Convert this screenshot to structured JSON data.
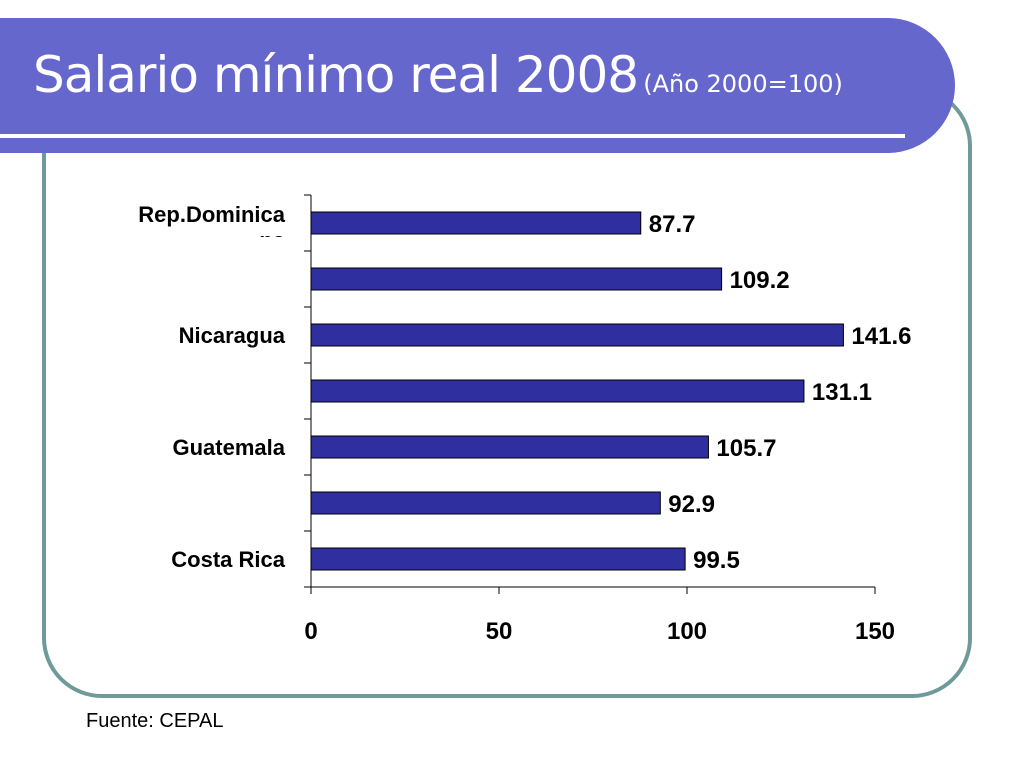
{
  "slide": {
    "title_main": "Salario mínimo real 2008",
    "title_sub": "(Año 2000=100)",
    "source": "Fuente: CEPAL"
  },
  "colors": {
    "band": "#6667cc",
    "frame": "#6f9a9a",
    "bar": "#2f2fa0",
    "bar_stroke": "#000000"
  },
  "chart_data": {
    "type": "bar",
    "orientation": "horizontal",
    "categories": [
      "Rep.Dominicana",
      "",
      "Nicaragua",
      "",
      "Guatemala",
      "",
      "Costa Rica"
    ],
    "category_label_lines": [
      [
        "Rep.Dominica",
        "na"
      ],
      [],
      [
        "Nicaragua"
      ],
      [],
      [
        "Guatemala"
      ],
      [],
      [
        "Costa Rica"
      ]
    ],
    "values": [
      87.7,
      109.2,
      141.6,
      131.1,
      105.7,
      92.9,
      99.5
    ],
    "value_labels": [
      "87.7",
      "109.2",
      "141.6",
      "131.1",
      "105.7",
      "92.9",
      "99.5"
    ],
    "xlim": [
      0,
      150
    ],
    "xticks": [
      0,
      50,
      100,
      150
    ],
    "xtick_labels": [
      "0",
      "50",
      "100",
      "150"
    ],
    "grid": false,
    "legend": "none"
  }
}
